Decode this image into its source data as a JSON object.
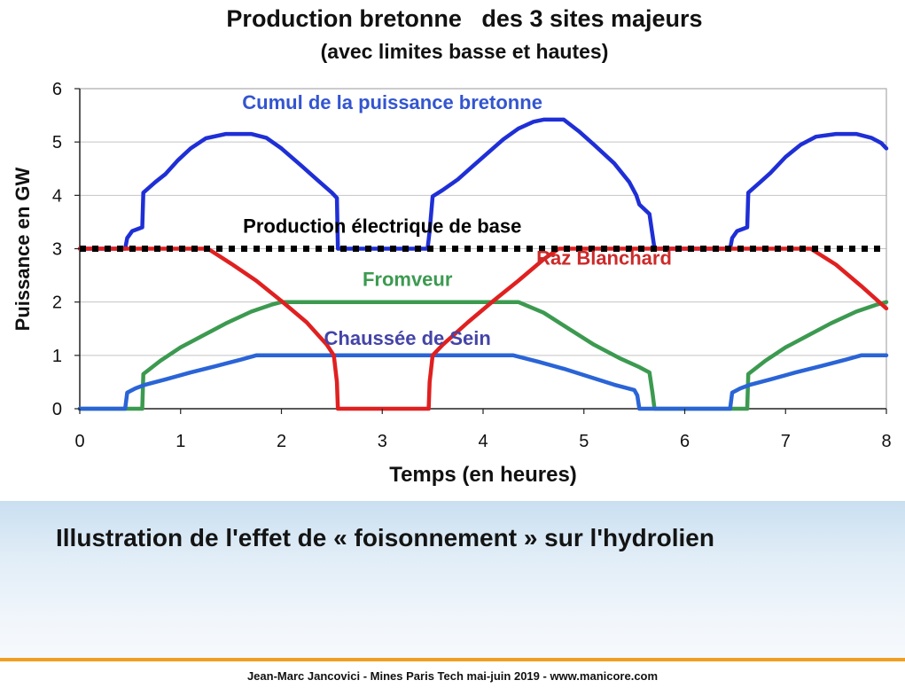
{
  "chart_data": {
    "type": "line",
    "title": "Production bretonne   des 3 sites majeurs",
    "subtitle": "(avec limites basse et hautes)",
    "xlabel": "Temps (en heures)",
    "ylabel": "Puissance en GW",
    "xlim": [
      0,
      8
    ],
    "ylim": [
      0,
      6
    ],
    "xticks": [
      "0",
      "1",
      "2",
      "3",
      "4",
      "5",
      "6",
      "7",
      "8"
    ],
    "yticks": [
      "0",
      "1",
      "2",
      "3",
      "4",
      "5",
      "6"
    ],
    "grid": "horizontal",
    "series": [
      {
        "name": "Cumul de la puissance bretonne",
        "color": "#1f2fd6",
        "points": [
          [
            0,
            3
          ],
          [
            0.45,
            3
          ],
          [
            0.47,
            3.2
          ],
          [
            0.52,
            3.33
          ],
          [
            0.62,
            3.4
          ],
          [
            0.63,
            4.05
          ],
          [
            0.75,
            4.25
          ],
          [
            0.85,
            4.4
          ],
          [
            0.97,
            4.65
          ],
          [
            1.1,
            4.88
          ],
          [
            1.25,
            5.07
          ],
          [
            1.45,
            5.15
          ],
          [
            1.7,
            5.15
          ],
          [
            1.85,
            5.08
          ],
          [
            2.0,
            4.88
          ],
          [
            2.2,
            4.55
          ],
          [
            2.35,
            4.3
          ],
          [
            2.5,
            4.05
          ],
          [
            2.55,
            3.95
          ],
          [
            2.56,
            3
          ],
          [
            3.45,
            3
          ],
          [
            3.47,
            3.33
          ],
          [
            3.5,
            3.98
          ],
          [
            3.6,
            4.1
          ],
          [
            3.75,
            4.3
          ],
          [
            3.9,
            4.55
          ],
          [
            4.05,
            4.8
          ],
          [
            4.2,
            5.05
          ],
          [
            4.35,
            5.25
          ],
          [
            4.5,
            5.38
          ],
          [
            4.6,
            5.42
          ],
          [
            4.8,
            5.42
          ],
          [
            4.95,
            5.2
          ],
          [
            5.1,
            4.95
          ],
          [
            5.3,
            4.6
          ],
          [
            5.45,
            4.25
          ],
          [
            5.52,
            4.0
          ],
          [
            5.55,
            3.83
          ],
          [
            5.65,
            3.65
          ],
          [
            5.7,
            3.0
          ],
          [
            6.45,
            3.0
          ],
          [
            6.47,
            3.2
          ],
          [
            6.52,
            3.33
          ],
          [
            6.62,
            3.4
          ],
          [
            6.63,
            4.05
          ],
          [
            6.75,
            4.25
          ],
          [
            6.85,
            4.42
          ],
          [
            7.0,
            4.72
          ],
          [
            7.15,
            4.95
          ],
          [
            7.3,
            5.1
          ],
          [
            7.5,
            5.15
          ],
          [
            7.7,
            5.15
          ],
          [
            7.85,
            5.08
          ],
          [
            7.95,
            4.98
          ],
          [
            8.0,
            4.88
          ]
        ]
      },
      {
        "name": "Production électrique de base",
        "color": "#000000",
        "style": "dotted",
        "points": [
          [
            0,
            3
          ],
          [
            8,
            3
          ]
        ]
      },
      {
        "name": "Raz Blanchard",
        "color": "#e02020",
        "points": [
          [
            0,
            3
          ],
          [
            1.27,
            3
          ],
          [
            1.5,
            2.72
          ],
          [
            1.75,
            2.4
          ],
          [
            2.0,
            2.02
          ],
          [
            2.25,
            1.62
          ],
          [
            2.45,
            1.2
          ],
          [
            2.52,
            1.0
          ],
          [
            2.55,
            0.5
          ],
          [
            2.56,
            0
          ],
          [
            3.46,
            0
          ],
          [
            3.47,
            0.5
          ],
          [
            3.5,
            1.0
          ],
          [
            3.6,
            1.2
          ],
          [
            3.85,
            1.62
          ],
          [
            4.1,
            2.02
          ],
          [
            4.35,
            2.4
          ],
          [
            4.6,
            2.8
          ],
          [
            4.75,
            3.0
          ],
          [
            7.25,
            3.0
          ],
          [
            7.5,
            2.7
          ],
          [
            7.75,
            2.3
          ],
          [
            8.0,
            1.88
          ]
        ]
      },
      {
        "name": "Fromveur",
        "color": "#3c9a50",
        "points": [
          [
            0,
            0
          ],
          [
            0.62,
            0
          ],
          [
            0.63,
            0.65
          ],
          [
            0.8,
            0.9
          ],
          [
            1.0,
            1.15
          ],
          [
            1.2,
            1.35
          ],
          [
            1.45,
            1.6
          ],
          [
            1.7,
            1.82
          ],
          [
            1.9,
            1.95
          ],
          [
            2.0,
            2.0
          ],
          [
            4.35,
            2.0
          ],
          [
            4.6,
            1.8
          ],
          [
            4.85,
            1.5
          ],
          [
            5.1,
            1.2
          ],
          [
            5.35,
            0.95
          ],
          [
            5.55,
            0.78
          ],
          [
            5.65,
            0.68
          ],
          [
            5.68,
            0.3
          ],
          [
            5.7,
            0
          ],
          [
            6.62,
            0
          ],
          [
            6.63,
            0.65
          ],
          [
            6.8,
            0.9
          ],
          [
            7.0,
            1.15
          ],
          [
            7.2,
            1.35
          ],
          [
            7.45,
            1.6
          ],
          [
            7.7,
            1.82
          ],
          [
            7.9,
            1.95
          ],
          [
            8.0,
            2.0
          ]
        ]
      },
      {
        "name": "Chaussée de Sein",
        "color": "#2a64d6",
        "points": [
          [
            0,
            0
          ],
          [
            0.45,
            0
          ],
          [
            0.47,
            0.3
          ],
          [
            0.55,
            0.38
          ],
          [
            0.65,
            0.45
          ],
          [
            0.85,
            0.55
          ],
          [
            1.1,
            0.68
          ],
          [
            1.35,
            0.8
          ],
          [
            1.6,
            0.92
          ],
          [
            1.75,
            1.0
          ],
          [
            4.3,
            1.0
          ],
          [
            4.55,
            0.88
          ],
          [
            4.8,
            0.75
          ],
          [
            5.05,
            0.6
          ],
          [
            5.3,
            0.45
          ],
          [
            5.5,
            0.35
          ],
          [
            5.53,
            0.25
          ],
          [
            5.55,
            0
          ],
          [
            6.45,
            0
          ],
          [
            6.47,
            0.3
          ],
          [
            6.55,
            0.38
          ],
          [
            6.65,
            0.45
          ],
          [
            6.85,
            0.55
          ],
          [
            7.1,
            0.68
          ],
          [
            7.35,
            0.8
          ],
          [
            7.6,
            0.92
          ],
          [
            7.75,
            1.0
          ],
          [
            8.0,
            1.0
          ]
        ]
      }
    ],
    "annotations": [
      {
        "text": "Cumul de la puissance bretonne",
        "x": 3.1,
        "y": 5.62,
        "color": "#3355d0"
      },
      {
        "text": "Production électrique de base",
        "x": 3.0,
        "y": 3.3,
        "color": "#000000"
      },
      {
        "text": "Raz Blanchard",
        "x": 5.2,
        "y": 2.7,
        "color": "#cc2a2a"
      },
      {
        "text": "Fromveur",
        "x": 3.25,
        "y": 2.3,
        "color": "#3c9a50"
      },
      {
        "text": "Chaussée de Sein",
        "x": 3.25,
        "y": 1.2,
        "color": "#4444a8"
      }
    ]
  },
  "caption": "Illustration de l'effet de « foisonnement » sur l'hydrolien",
  "footer": "Jean-Marc Jancovici - Mines Paris Tech mai-juin 2019 - www.manicore.com"
}
